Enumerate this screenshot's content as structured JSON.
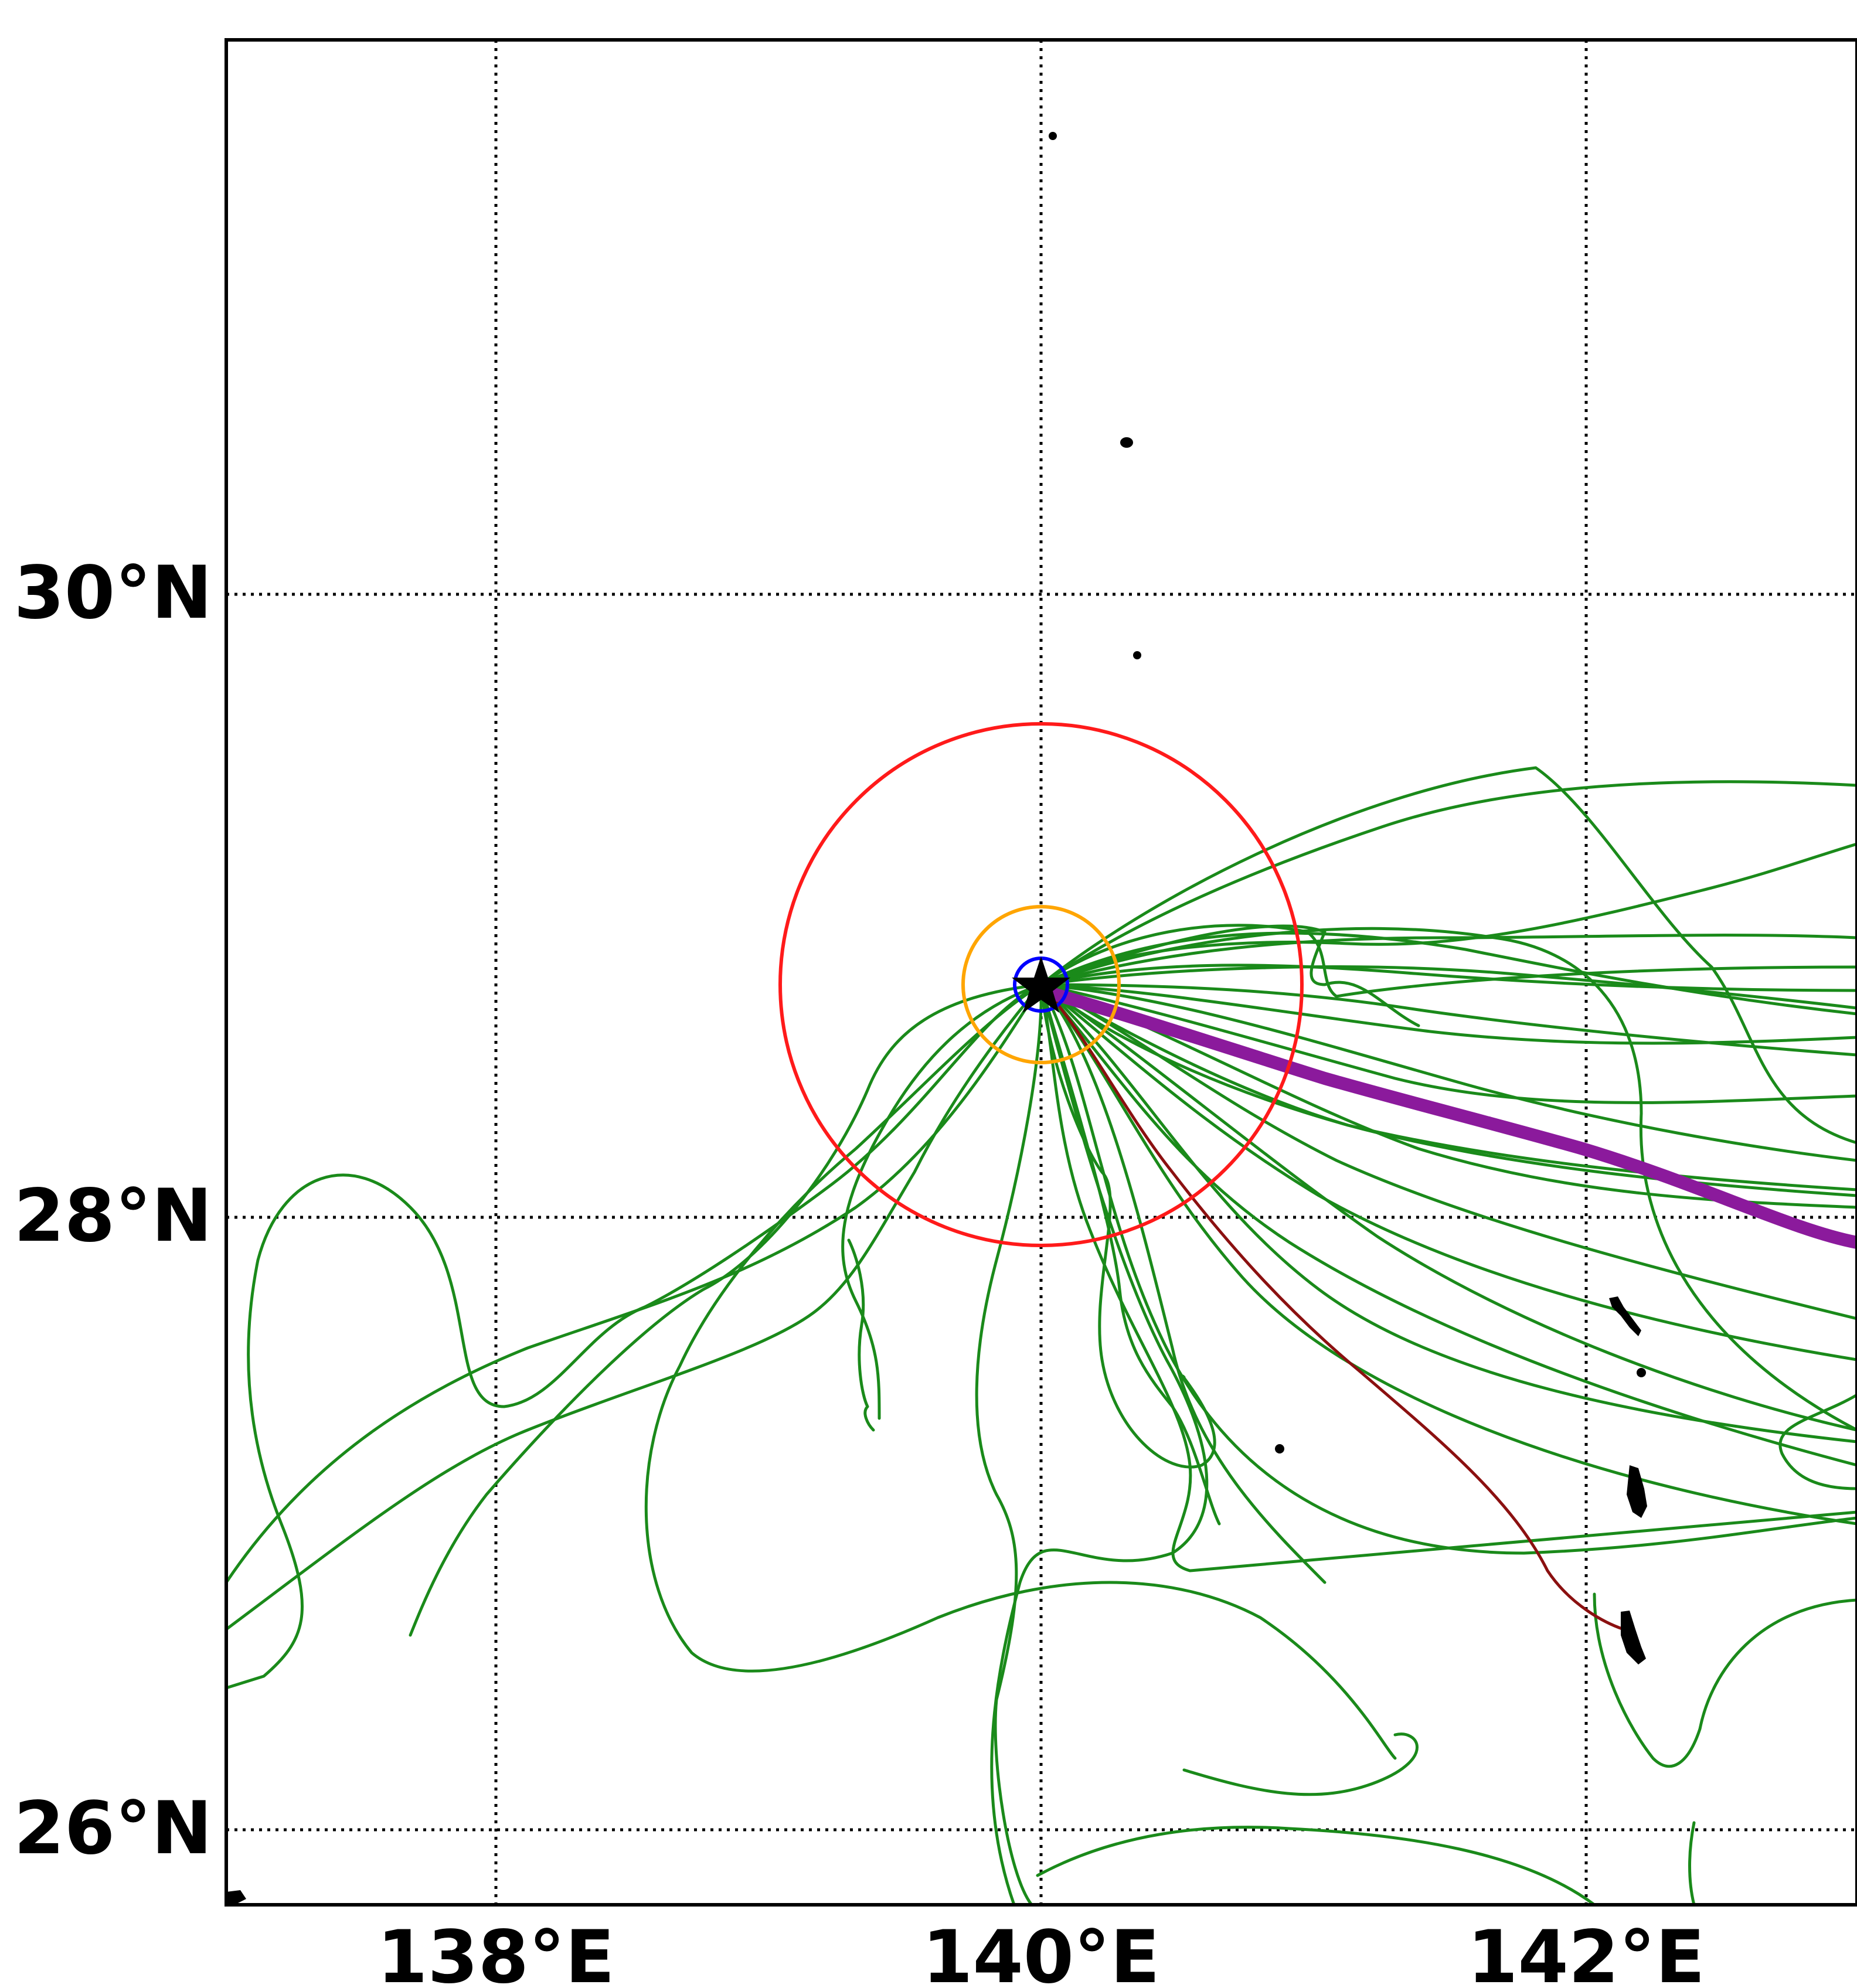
{
  "map": {
    "lon_range": [
      137.0,
      143.0
    ],
    "lat_range": [
      25.75,
      31.8
    ],
    "grid": "dotted",
    "lon_ticks": [
      {
        "value": 138,
        "label": "138°E"
      },
      {
        "value": 140,
        "label": "140°E"
      },
      {
        "value": 142,
        "label": "142°E"
      }
    ],
    "lat_ticks": [
      {
        "value": 30,
        "label": "30°N"
      },
      {
        "value": 28,
        "label": "28°N"
      },
      {
        "value": 26,
        "label": "26°N"
      }
    ],
    "center": {
      "lon": 140.0,
      "lat": 28.75
    },
    "colors": {
      "ensemble": "#1a8a1a",
      "mean_track": "#8b1a9c",
      "dark_track": "#8b1010",
      "ring_large": "#ff1a1a",
      "ring_mid": "#ffa500",
      "ring_small": "#0000ff",
      "land": "#000000",
      "grid": "#000000"
    },
    "marker": "star-icon"
  }
}
